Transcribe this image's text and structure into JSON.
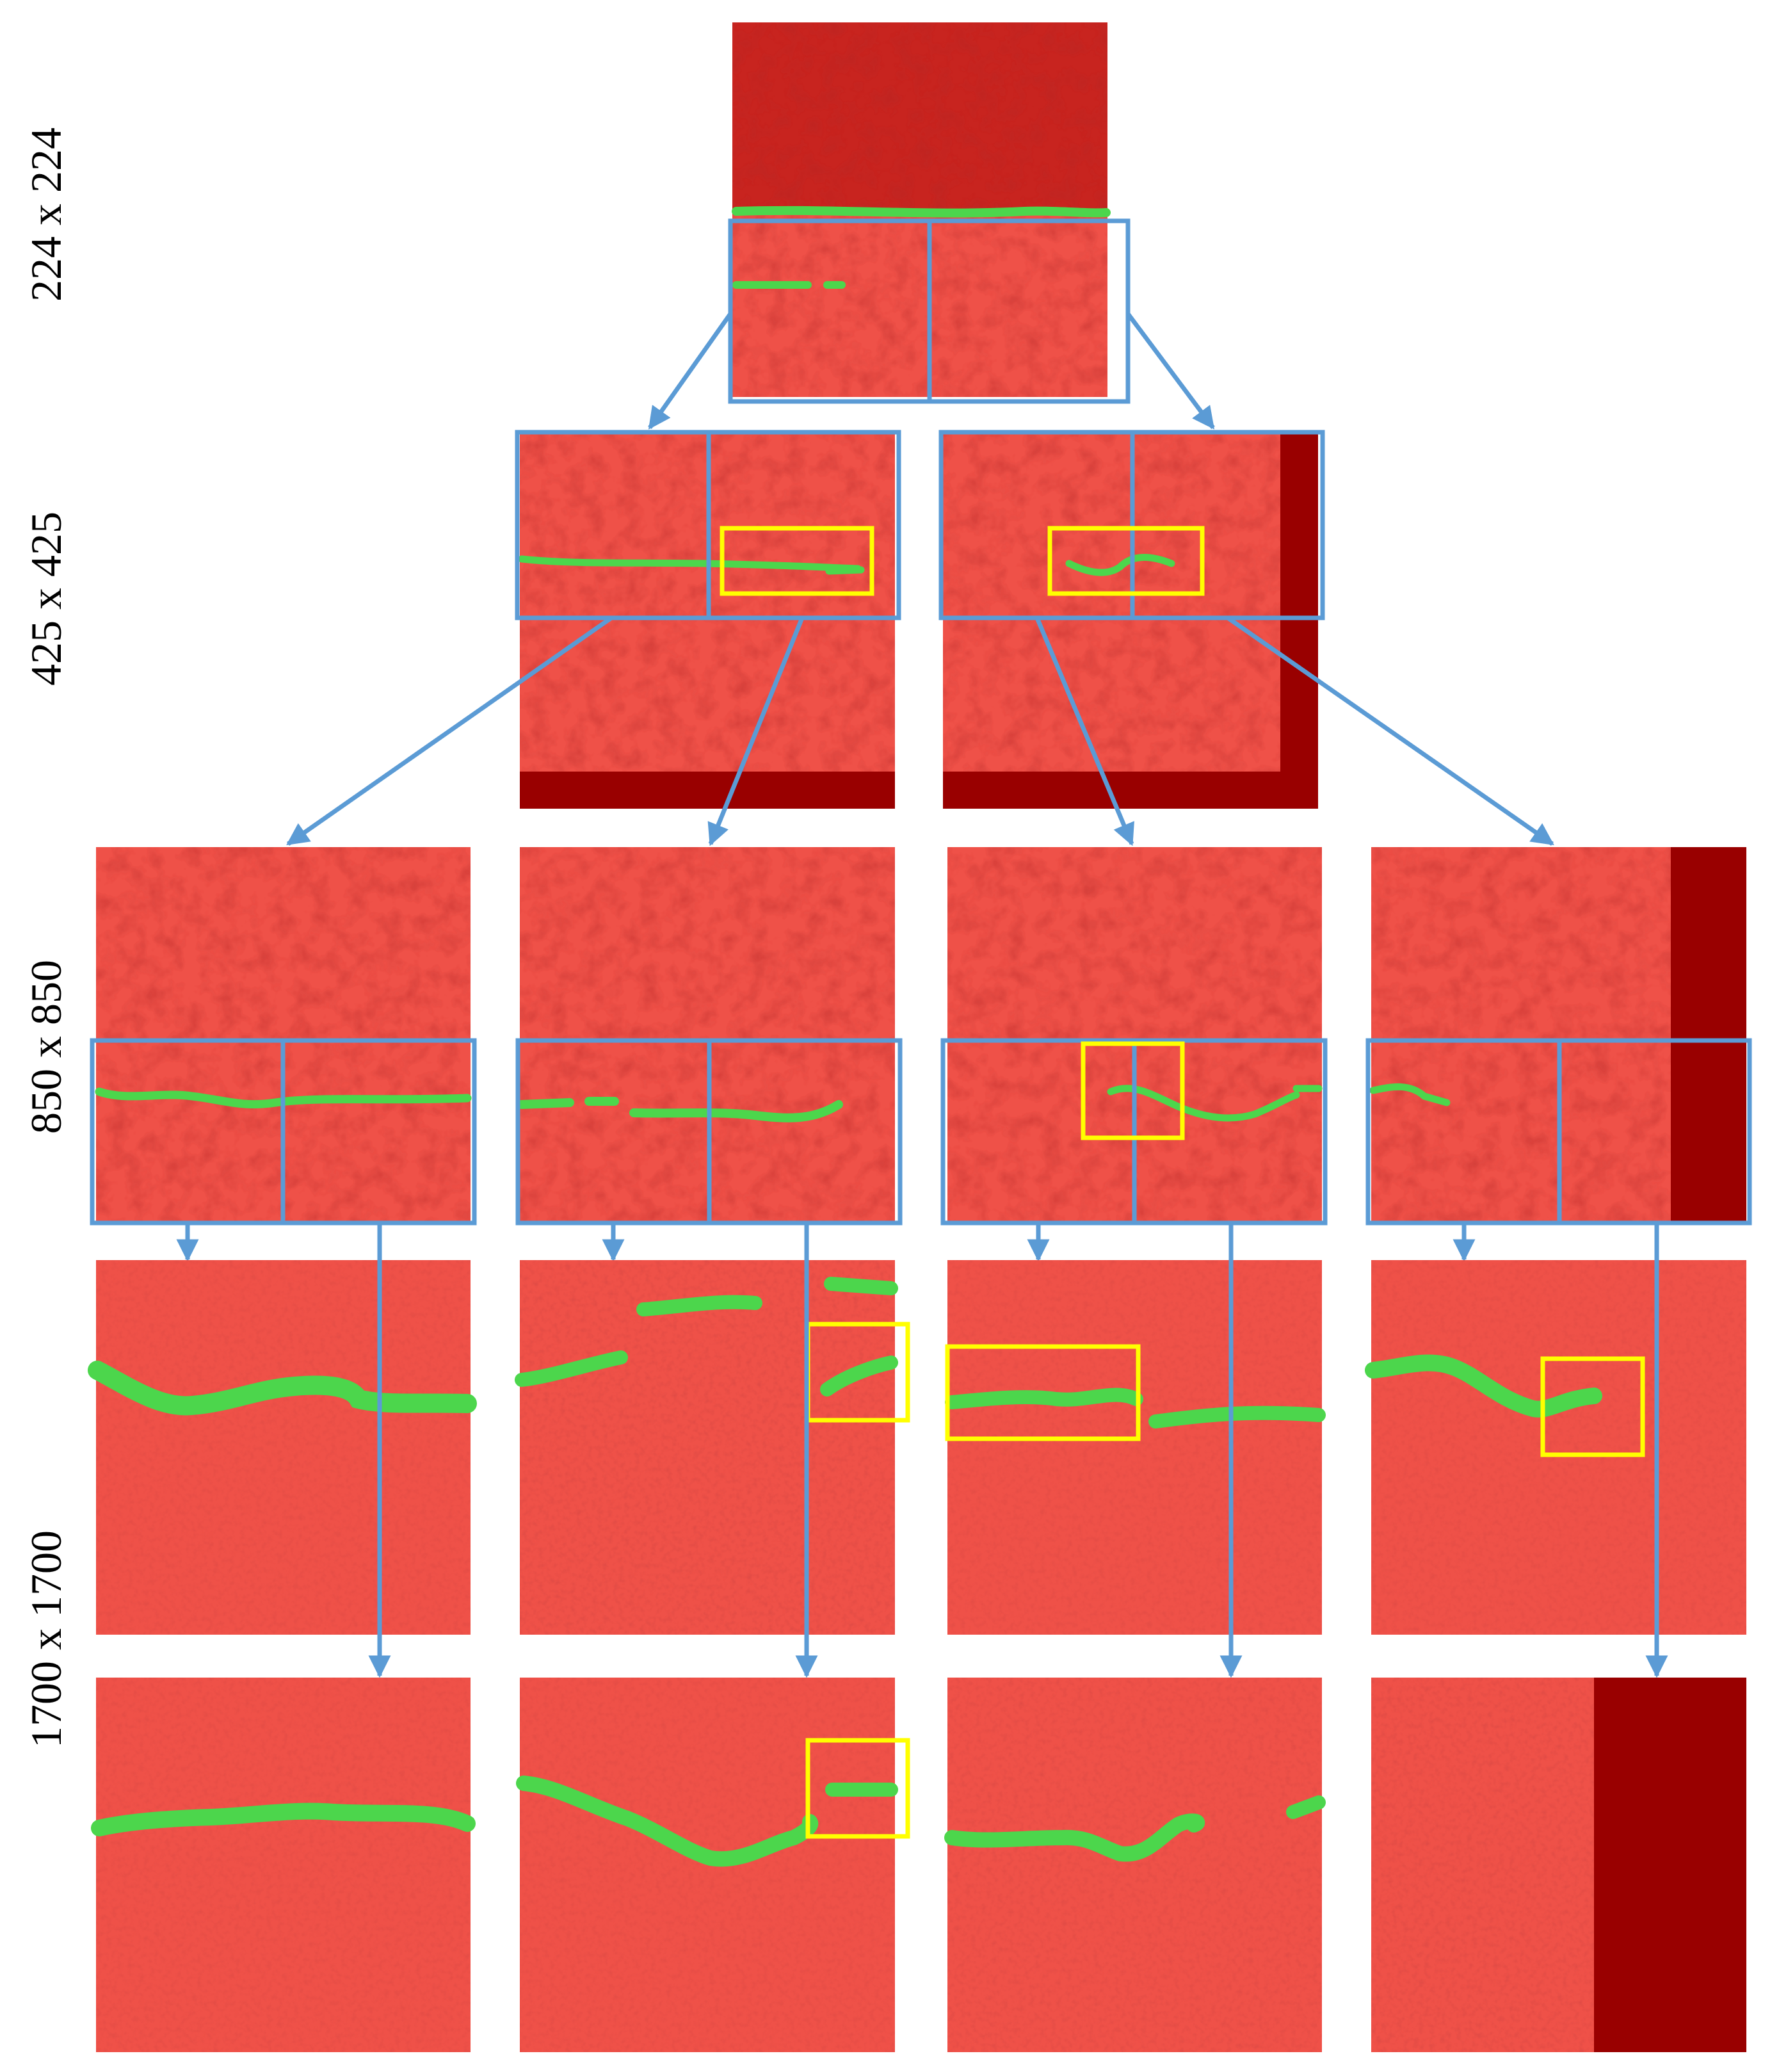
{
  "row_labels": [
    "224 x 224",
    "425 x 425",
    "850 x 850",
    "1700 x 1700"
  ],
  "colors": {
    "background": "#ffffff",
    "tile_red": "#ef5148",
    "tile_dark_red": "#cf2d28",
    "padding_dark_red": "#990000",
    "crack_green": "#4cd64c",
    "crack_green_edge": "#2fae36",
    "grid_box_blue": "#5b9bd5",
    "highlight_yellow": "#ffff00"
  },
  "icons": {
    "connector": "arrow",
    "region_marker": "bounding-box"
  }
}
